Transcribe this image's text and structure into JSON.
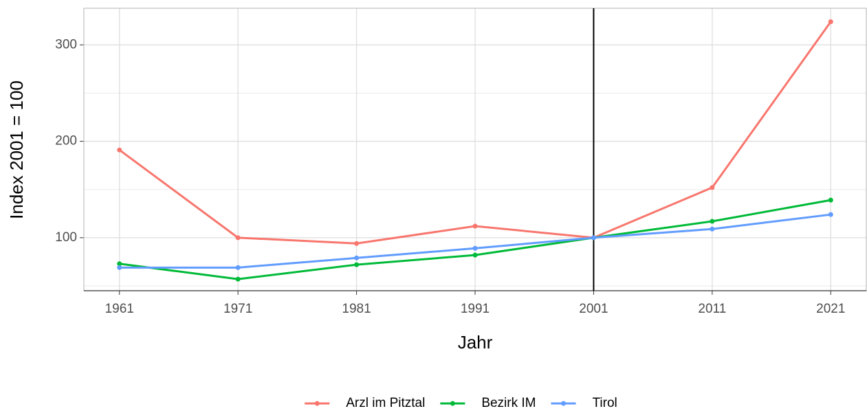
{
  "chart_data": {
    "type": "line",
    "x_label": "Jahr",
    "y_label": "Index 2001 = 100",
    "x": [
      1961,
      1971,
      1981,
      1991,
      2001,
      2011,
      2021
    ],
    "xlim": [
      1958,
      2024
    ],
    "xticks": [
      1961,
      1971,
      1981,
      1991,
      2001,
      2011,
      2021
    ],
    "ylim": [
      45,
      338
    ],
    "yticks": [
      100,
      200,
      300
    ],
    "minor_yticks": [
      50,
      150,
      250
    ],
    "grid": true,
    "vline": 2001,
    "legend": "bottom",
    "series": [
      {
        "name": "Arzl im Pitztal",
        "color": "#F8766D",
        "values": [
          191,
          100,
          94,
          112,
          100,
          152,
          324
        ]
      },
      {
        "name": "Bezirk IM",
        "color": "#00BA38",
        "values": [
          73,
          57,
          72,
          82,
          100,
          117,
          139
        ]
      },
      {
        "name": "Tirol",
        "color": "#619CFF",
        "values": [
          69,
          69,
          79,
          89,
          100,
          109,
          124
        ]
      }
    ]
  }
}
